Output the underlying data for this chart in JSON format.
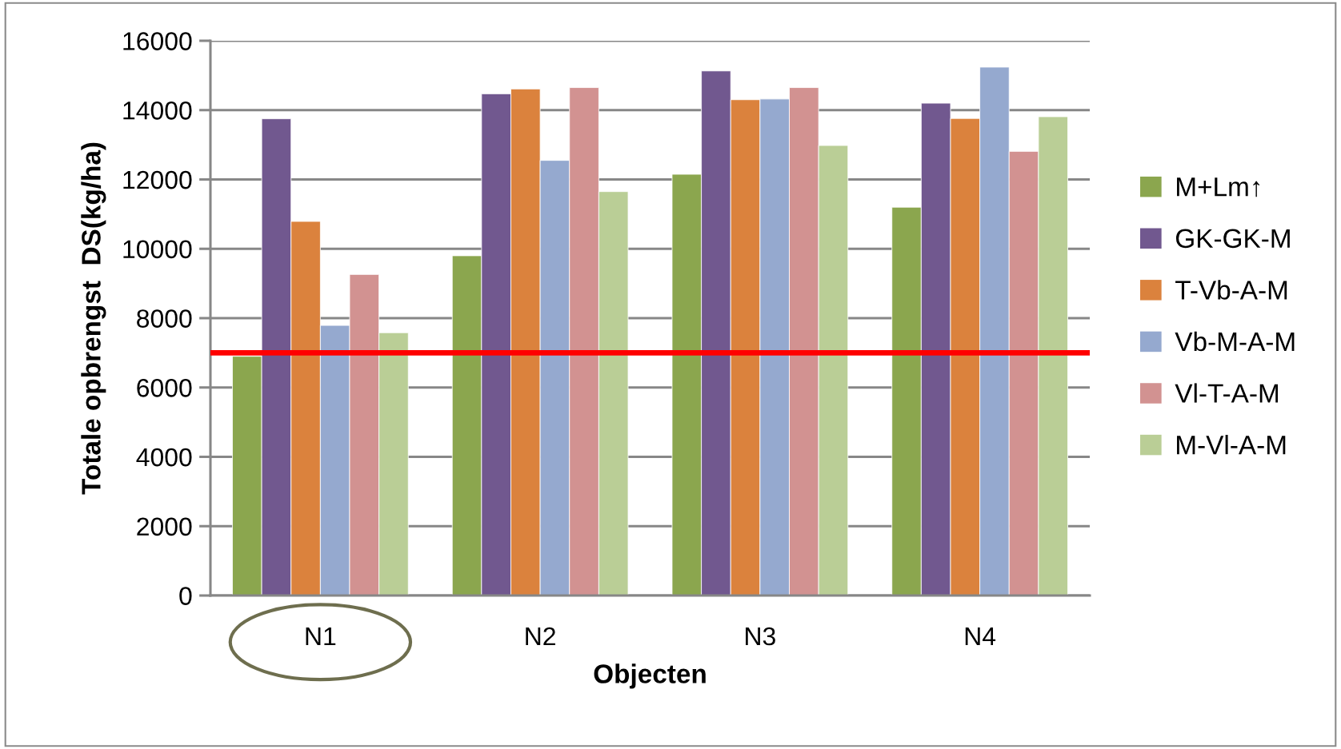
{
  "chart_data": {
    "type": "bar",
    "xlabel": "Objecten",
    "ylabel": "Totale opbrengst  DS(kg/ha)",
    "categories": [
      "N1",
      "N2",
      "N3",
      "N4"
    ],
    "series": [
      {
        "name": "M+Lm↑",
        "color": "#8ba64e",
        "values": [
          6900,
          9800,
          12150,
          11200
        ]
      },
      {
        "name": "GK-GK-M",
        "color": "#71588f",
        "values": [
          13750,
          14470,
          15130,
          14200
        ]
      },
      {
        "name": "T-Vb-A-M",
        "color": "#db823d",
        "values": [
          10790,
          14610,
          14300,
          13760
        ]
      },
      {
        "name": "Vb-M-A-M",
        "color": "#95a9cf",
        "values": [
          7790,
          12550,
          14320,
          15240
        ]
      },
      {
        "name": "Vl-T-A-M",
        "color": "#d29291",
        "values": [
          9260,
          14650,
          14650,
          12810
        ]
      },
      {
        "name": "M-Vl-A-M",
        "color": "#bace96",
        "values": [
          7580,
          11650,
          12980,
          13810
        ]
      }
    ],
    "ylim": [
      0,
      16000
    ],
    "yticks": [
      0,
      2000,
      4000,
      6000,
      8000,
      10000,
      12000,
      14000,
      16000
    ],
    "grid": "y",
    "legend": "right",
    "ref_lines": [
      {
        "axis": "y",
        "value": 7000,
        "color": "#ff0000"
      }
    ]
  }
}
